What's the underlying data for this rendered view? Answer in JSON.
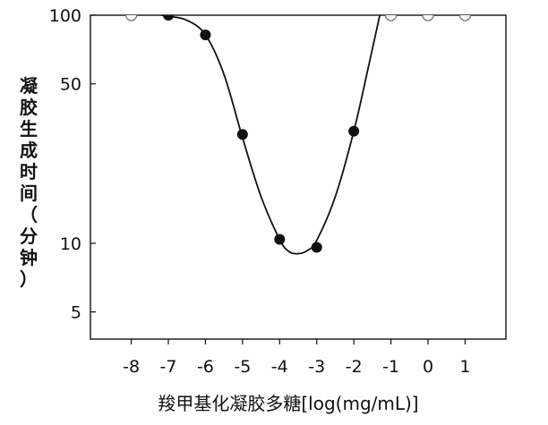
{
  "chart_data": {
    "type": "scatter",
    "xlabel": "羧甲基化凝胶多糖[log(mg/mL)]",
    "ylabel": "凝胶生成时间（分钟）",
    "ylabel_chars": [
      "凝",
      "胶",
      "生",
      "成",
      "时",
      "间",
      "（",
      "分",
      "钟",
      "）"
    ],
    "y_scale": "log",
    "xlim": [
      -9.1,
      2.1
    ],
    "ylim": [
      3.8,
      100
    ],
    "x_ticks": [
      -8,
      -7,
      -6,
      -5,
      -4,
      -3,
      -2,
      -1,
      0,
      1
    ],
    "x_tick_labels": [
      "-8",
      "-7",
      "-6",
      "-5",
      "-4",
      "-3",
      "-2",
      "-1",
      "0",
      "1"
    ],
    "y_ticks": [
      5,
      10,
      50,
      100
    ],
    "y_tick_labels": [
      "5",
      "10",
      "50",
      "100"
    ],
    "grid": false,
    "series": [
      {
        "marker": "filled-circle",
        "x": [
          -7,
          -6,
          -5,
          -4,
          -3,
          -2
        ],
        "y": [
          100,
          82,
          30,
          10.4,
          9.6,
          31
        ]
      },
      {
        "marker": "open-circle",
        "x": [
          -8,
          -1,
          0,
          1
        ],
        "y": [
          100,
          100,
          100,
          100
        ]
      }
    ],
    "fit_curve": {
      "x": [
        -7.2,
        -7,
        -6.5,
        -6,
        -5.5,
        -5,
        -4.5,
        -4,
        -3.75,
        -3.5,
        -3.25,
        -3,
        -2.5,
        -2,
        -1.6,
        -1.3
      ],
      "y": [
        100,
        99,
        95,
        82,
        55,
        29,
        16,
        10.4,
        9.2,
        9.0,
        9.3,
        10.3,
        16,
        31,
        60,
        100
      ]
    }
  }
}
